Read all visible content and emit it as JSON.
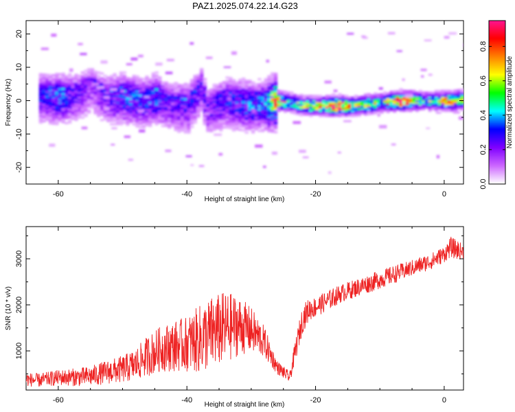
{
  "title": "PAZ1.2025.074.22.14.G23",
  "chart_data": [
    {
      "type": "heatmap",
      "xlabel": "Height of straight line (km)",
      "ylabel": "Frequency (Hz)",
      "xlim": [
        -65,
        3
      ],
      "ylim": [
        -25,
        24
      ],
      "xticks": [
        -60,
        -40,
        -20,
        0
      ],
      "yticks": [
        -20,
        -10,
        0,
        10,
        20
      ],
      "colorbar": {
        "label": "Normalized spectral amplitude",
        "range": [
          0,
          0.95
        ],
        "ticks": [
          0.0,
          0.2,
          0.4,
          0.6,
          0.8
        ],
        "tick_labels": [
          "0.0",
          "0.2",
          "0.4",
          "0.6",
          "0.8"
        ],
        "colormap": [
          "#ffffff",
          "#cc66ff",
          "#7f00ff",
          "#0000ff",
          "#00ffff",
          "#00ff00",
          "#ffff00",
          "#ff8000",
          "#ff0000",
          "#ff1493"
        ]
      },
      "ridge": [
        {
          "x": -63,
          "freq": 1.0,
          "amp": 0.25
        },
        {
          "x": -60,
          "freq": 0.5,
          "amp": 0.3
        },
        {
          "x": -57,
          "freq": 1.5,
          "amp": 0.2
        },
        {
          "x": -55,
          "freq": 3.5,
          "amp": 0.15
        },
        {
          "x": -53,
          "freq": 0.5,
          "amp": 0.2
        },
        {
          "x": -50,
          "freq": 0.5,
          "amp": 0.3
        },
        {
          "x": -47,
          "freq": -0.5,
          "amp": 0.25
        },
        {
          "x": -45,
          "freq": 0.5,
          "amp": 0.3
        },
        {
          "x": -43,
          "freq": -1.5,
          "amp": 0.2
        },
        {
          "x": -40,
          "freq": -2.0,
          "amp": 0.25
        },
        {
          "x": -38,
          "freq": 3.0,
          "amp": 0.2
        },
        {
          "x": -37,
          "freq": -3.0,
          "amp": 0.2
        },
        {
          "x": -34,
          "freq": -0.5,
          "amp": 0.25
        },
        {
          "x": -31,
          "freq": -1.5,
          "amp": 0.3
        },
        {
          "x": -28,
          "freq": -1.5,
          "amp": 0.3
        },
        {
          "x": -26,
          "freq": 0.0,
          "amp": 0.75
        },
        {
          "x": -24,
          "freq": -0.5,
          "amp": 0.4
        },
        {
          "x": -22,
          "freq": -1.5,
          "amp": 0.55
        },
        {
          "x": -20,
          "freq": -1.5,
          "amp": 0.6
        },
        {
          "x": -17,
          "freq": -1.5,
          "amp": 0.9
        },
        {
          "x": -14,
          "freq": -1.5,
          "amp": 0.5
        },
        {
          "x": -12,
          "freq": -1.0,
          "amp": 0.6
        },
        {
          "x": -10,
          "freq": -0.5,
          "amp": 0.5
        },
        {
          "x": -7,
          "freq": 0.0,
          "amp": 0.9
        },
        {
          "x": -5,
          "freq": 0.0,
          "amp": 0.6
        },
        {
          "x": -3,
          "freq": 0.0,
          "amp": 0.4
        },
        {
          "x": 1,
          "freq": 0.0,
          "amp": 0.75
        },
        {
          "x": 3,
          "freq": 0.5,
          "amp": 0.5
        }
      ]
    },
    {
      "type": "line",
      "xlabel": "Height of straight line (km)",
      "ylabel": "SNR (10 * v/v)",
      "xlim": [
        -65,
        3
      ],
      "ylim": [
        150,
        3700
      ],
      "xticks": [
        -60,
        -40,
        -20,
        0
      ],
      "yticks": [
        1000,
        2000,
        3000
      ],
      "line_color": "#ee2222",
      "x": [
        -65,
        -63,
        -60,
        -57,
        -55,
        -53,
        -50,
        -48,
        -46,
        -44,
        -42,
        -40,
        -38,
        -36,
        -34,
        -32,
        -30,
        -28,
        -26,
        -24,
        -23,
        -22,
        -21,
        -20,
        -18,
        -16,
        -14,
        -12,
        -10,
        -8,
        -6,
        -4,
        -2,
        0,
        1,
        2,
        3
      ],
      "y": [
        380,
        360,
        420,
        430,
        450,
        520,
        600,
        700,
        900,
        1050,
        1100,
        1150,
        1250,
        1400,
        1500,
        1550,
        1450,
        1200,
        650,
        420,
        1100,
        1700,
        1900,
        1950,
        2100,
        2250,
        2350,
        2450,
        2550,
        2650,
        2750,
        2850,
        2950,
        3100,
        3250,
        3200,
        3150
      ],
      "amplitude": [
        150,
        150,
        170,
        200,
        220,
        250,
        300,
        350,
        450,
        500,
        550,
        600,
        750,
        800,
        800,
        650,
        500,
        350,
        150,
        120,
        250,
        300,
        250,
        220,
        220,
        200,
        200,
        200,
        200,
        200,
        180,
        180,
        180,
        180,
        220,
        220,
        150
      ]
    }
  ]
}
